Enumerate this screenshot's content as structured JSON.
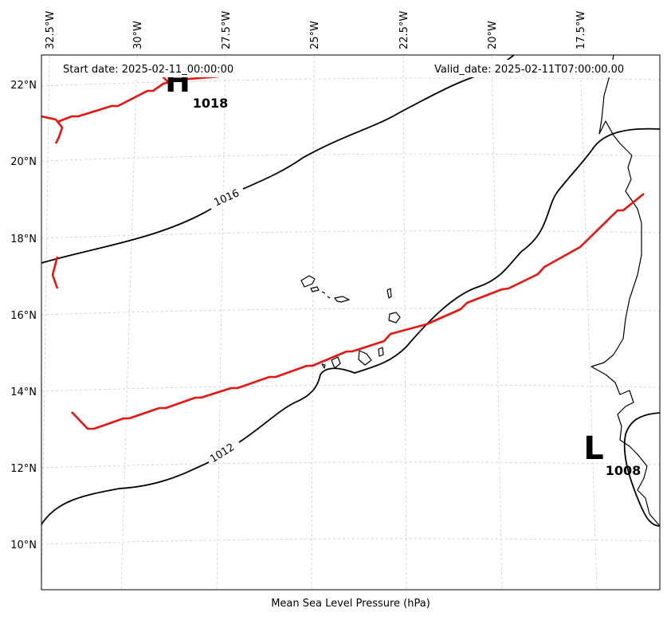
{
  "header": {
    "start_date": "Start date: 2025-02-11_00:00:00",
    "valid_date": "Valid_date: 2025-02-11T07:00:00.00"
  },
  "footer": {
    "caption": "Mean Sea Level Pressure (hPa)"
  },
  "axes": {
    "lon_labels": [
      "32.5°W",
      "30°W",
      "27.5°W",
      "25°W",
      "22.5°W",
      "20°W",
      "17.5°W"
    ],
    "lat_labels": [
      "22°N",
      "20°N",
      "18°N",
      "16°N",
      "14°N",
      "12°N",
      "10°N"
    ]
  },
  "contours": {
    "upper_label": "1016",
    "lower_label": "1012"
  },
  "pressure_centers": {
    "high": {
      "letter": "H",
      "value": "1018"
    },
    "low": {
      "letter": "L",
      "value": "1008"
    }
  },
  "colors": {
    "front": "#e8140f",
    "isobar": "#000000",
    "grid": "#cccccc"
  }
}
